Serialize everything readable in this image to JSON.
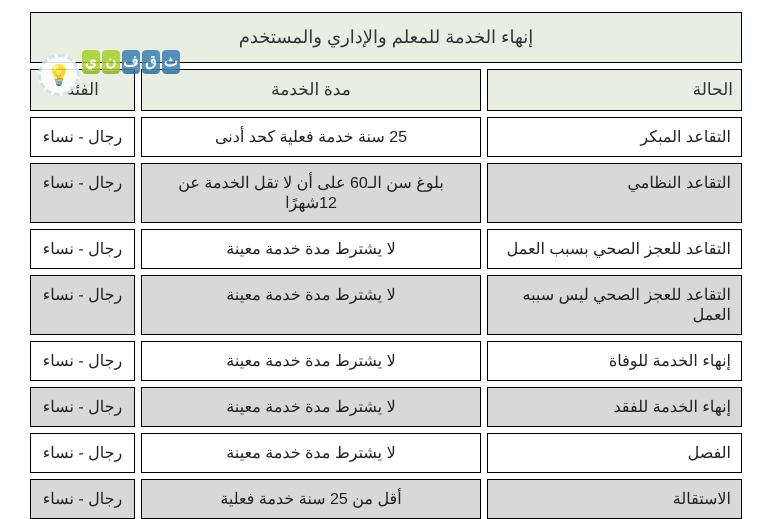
{
  "title": "إنهاء الخدمة للمعلم والإداري والمستخدم",
  "columns": {
    "status": "الحالة",
    "duration": "مدة الخدمة",
    "category": "الفئة"
  },
  "rows": [
    {
      "status": "التقاعد المبكر",
      "duration": "25 سنة خدمة فعلية كحد أدنى",
      "category": "رجال - نساء",
      "bg": "white"
    },
    {
      "status": "التقاعد النظامي",
      "duration": "بلوغ سن الـ60  على أن لا تقل الخدمة عن 12شهرًا",
      "category": "رجال - نساء",
      "bg": "gray"
    },
    {
      "status": "التقاعد للعجز الصحي بسبب العمل",
      "duration": "لا يشترط مدة خدمة معينة",
      "category": "رجال - نساء",
      "bg": "white"
    },
    {
      "status": "التقاعد للعجز الصحي ليس سببه العمل",
      "duration": "لا يشترط مدة خدمة معينة",
      "category": "رجال - نساء",
      "bg": "gray"
    },
    {
      "status": "إنهاء الخدمة للوفاة",
      "duration": "لا يشترط مدة خدمة معينة",
      "category": "رجال - نساء",
      "bg": "white"
    },
    {
      "status": "إنهاء الخدمة للفقد",
      "duration": "لا يشترط مدة خدمة معينة",
      "category": "رجال - نساء",
      "bg": "gray"
    },
    {
      "status": "الفصل",
      "duration": "لا يشترط مدة خدمة معينة",
      "category": "رجال - نساء",
      "bg": "white"
    },
    {
      "status": "الاستقالة",
      "duration": "أقل من 25 سنة خدمة فعلية",
      "category": "رجال - نساء",
      "bg": "gray"
    }
  ],
  "colors": {
    "header_bg": "#e8efe2",
    "row_white": "#ffffff",
    "row_gray": "#d8d8d8",
    "border": "#000000",
    "text": "#222222"
  },
  "watermark": {
    "letters": [
      "ث",
      "ق",
      "ف",
      "ن",
      "ي"
    ],
    "letter_colors": [
      "#3b7fb5",
      "#3b7fb5",
      "#3b7fb5",
      "#a7d129",
      "#a7d129"
    ],
    "bulb_glyph": "💡"
  }
}
